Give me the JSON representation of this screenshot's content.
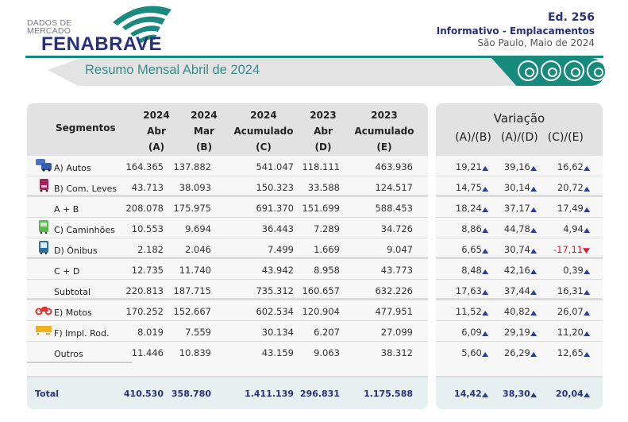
{
  "header": {
    "logo_small_line1": "DADOS DE",
    "logo_small_line2": "MERCADO",
    "logo_brand": "FENABRAVE",
    "edition": "Ed. 256",
    "subtitle": "Informativo - Emplacamentos",
    "city_date": "São Paulo, Maio de 2024",
    "banner_title": "Resumo Mensal Abril de 2024"
  },
  "colors": {
    "brand_navy": "#27307c",
    "teal": "#168a7d",
    "up_arrow": "#2c3e9a",
    "down": "#d21c37"
  },
  "table": {
    "segment_header": "Segmentos",
    "columns": [
      {
        "l1": "2024",
        "l2": "Abr",
        "l3": "(A)"
      },
      {
        "l1": "2024",
        "l2": "Mar",
        "l3": "(B)"
      },
      {
        "l1": "2024",
        "l2": "Acumulado",
        "l3": "(C)"
      },
      {
        "l1": "2023",
        "l2": "Abr",
        "l3": "(D)"
      },
      {
        "l1": "2023",
        "l2": "Acumulado",
        "l3": "(E)"
      }
    ],
    "variation_title": "Variação",
    "variation_columns": [
      "(A)/(B)",
      "(A)/(D)",
      "(C)/(E)"
    ],
    "rows": [
      {
        "label": "A) Autos",
        "icon": "cars-icon",
        "values": [
          "164.365",
          "137.882",
          "541.047",
          "118.111",
          "463.936"
        ],
        "var": [
          "19,21",
          "39,16",
          "16,62"
        ],
        "dir": [
          "up",
          "up",
          "up"
        ]
      },
      {
        "label": "B) Com. Leves",
        "icon": "light-truck-icon",
        "values": [
          "43.713",
          "38.093",
          "150.323",
          "33.588",
          "124.517"
        ],
        "var": [
          "14,75",
          "30,14",
          "20,72"
        ],
        "dir": [
          "up",
          "up",
          "up"
        ]
      },
      {
        "label": "A + B",
        "icon": "",
        "values": [
          "208.078",
          "175.975",
          "691.370",
          "151.699",
          "588.453"
        ],
        "var": [
          "18,24",
          "37,17",
          "17,49"
        ],
        "dir": [
          "up",
          "up",
          "up"
        ]
      },
      {
        "label": "C) Caminhões",
        "icon": "truck-icon",
        "values": [
          "10.553",
          "9.694",
          "36.443",
          "7.289",
          "34.726"
        ],
        "var": [
          "8,86",
          "44,78",
          "4,94"
        ],
        "dir": [
          "up",
          "up",
          "up"
        ]
      },
      {
        "label": "D) Ônibus",
        "icon": "bus-icon",
        "values": [
          "2.182",
          "2.046",
          "7.499",
          "1.669",
          "9.047"
        ],
        "var": [
          "6,65",
          "30,74",
          "-17,11"
        ],
        "dir": [
          "up",
          "up",
          "down"
        ]
      },
      {
        "label": "C + D",
        "icon": "",
        "values": [
          "12.735",
          "11.740",
          "43.942",
          "8.958",
          "43.773"
        ],
        "var": [
          "8,48",
          "42,16",
          "0,39"
        ],
        "dir": [
          "up",
          "up",
          "up"
        ]
      },
      {
        "label": "Subtotal",
        "icon": "",
        "values": [
          "220.813",
          "187.715",
          "735.312",
          "160.657",
          "632.226"
        ],
        "var": [
          "17,63",
          "37,44",
          "16,31"
        ],
        "dir": [
          "up",
          "up",
          "up"
        ]
      },
      {
        "label": "E) Motos",
        "icon": "motorcycle-icon",
        "values": [
          "170.252",
          "152.667",
          "602.534",
          "120.904",
          "477.951"
        ],
        "var": [
          "11,52",
          "40,82",
          "26,07"
        ],
        "dir": [
          "up",
          "up",
          "up"
        ]
      },
      {
        "label": "F) Impl. Rod.",
        "icon": "trailer-icon",
        "values": [
          "8.019",
          "7.559",
          "30.134",
          "6.207",
          "27.099"
        ],
        "var": [
          "6,09",
          "29,19",
          "11,20"
        ],
        "dir": [
          "up",
          "up",
          "up"
        ]
      },
      {
        "label": "Outros",
        "icon": "",
        "values": [
          "11.446",
          "10.839",
          "43.159",
          "9.063",
          "38.312"
        ],
        "var": [
          "5,60",
          "26,29",
          "12,65"
        ],
        "dir": [
          "up",
          "up",
          "up"
        ]
      }
    ],
    "total": {
      "label": "Total",
      "values": [
        "410.530",
        "358.780",
        "1.411.139",
        "296.831",
        "1.175.588"
      ],
      "var": [
        "14,42",
        "38,30",
        "20,04"
      ]
    }
  }
}
